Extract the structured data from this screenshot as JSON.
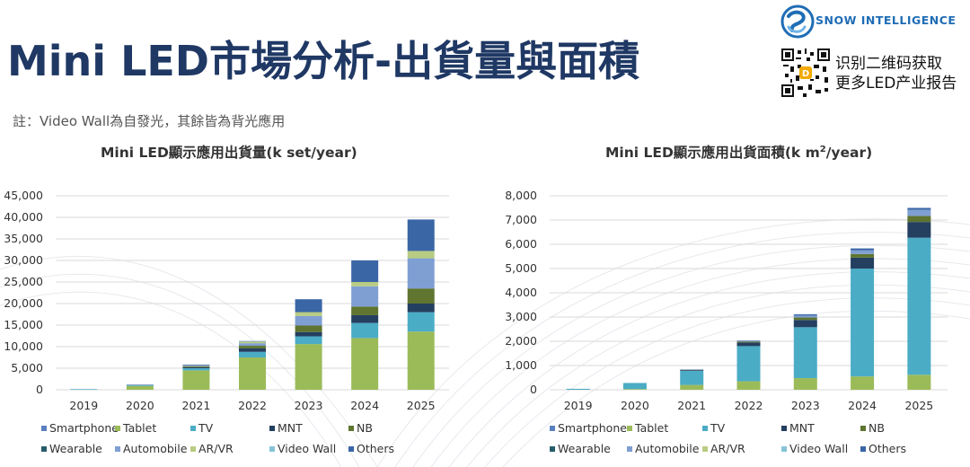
{
  "header": {
    "title": "Mini LED市場分析-出貨量與面積",
    "note": "註：Video Wall為自發光，其餘皆為背光應用"
  },
  "branding": {
    "logo_text": "SNOW INTELLIGENCE",
    "qr_line1": "识别二维码获取",
    "qr_line2": "更多LED产业报告"
  },
  "colors": {
    "Smartphone": "#5b7fbf",
    "Tablet": "#9bbb59",
    "TV": "#4bacc6",
    "MNT": "#243f60",
    "NB": "#5f7530",
    "Wearable": "#275c6b",
    "Automobile": "#7f9fd3",
    "AR/VR": "#b8cc82",
    "Video Wall": "#87c4d8",
    "Others": "#3a66a6",
    "title": "#1f3864",
    "logo": "#1f6db5"
  },
  "chart_data": [
    {
      "type": "bar",
      "stacked": true,
      "title": "Mini LED顯示應用出貨量",
      "title_unit": "(k set/year)",
      "categories": [
        "2019",
        "2020",
        "2021",
        "2022",
        "2023",
        "2024",
        "2025"
      ],
      "ylim": [
        0,
        45000
      ],
      "yticks": [
        0,
        5000,
        10000,
        15000,
        20000,
        25000,
        30000,
        35000,
        40000,
        45000
      ],
      "ytick_labels": [
        "0",
        "5,000",
        "10,000",
        "15,000",
        "20,000",
        "25,000",
        "30,000",
        "35,000",
        "40,000",
        "45,000"
      ],
      "series": [
        {
          "name": "Smartphone",
          "values": [
            0,
            0,
            0,
            0,
            0,
            0,
            0
          ]
        },
        {
          "name": "Tablet",
          "values": [
            0,
            900,
            4500,
            7500,
            10600,
            12000,
            13500
          ]
        },
        {
          "name": "TV",
          "values": [
            150,
            200,
            500,
            1300,
            1800,
            3500,
            4500
          ]
        },
        {
          "name": "MNT",
          "values": [
            0,
            0,
            200,
            800,
            1000,
            1800,
            2000
          ]
        },
        {
          "name": "NB",
          "values": [
            0,
            0,
            200,
            600,
            1500,
            2000,
            3500
          ]
        },
        {
          "name": "Wearable",
          "values": [
            0,
            0,
            0,
            0,
            0,
            0,
            0
          ]
        },
        {
          "name": "Automobile",
          "values": [
            0,
            0,
            100,
            600,
            2200,
            4700,
            7000
          ]
        },
        {
          "name": "AR/VR",
          "values": [
            0,
            0,
            100,
            400,
            900,
            1000,
            1700
          ]
        },
        {
          "name": "Video Wall",
          "values": [
            0,
            0,
            0,
            0,
            0,
            0,
            0
          ]
        },
        {
          "name": "Others",
          "values": [
            0,
            100,
            200,
            100,
            3000,
            5000,
            7300
          ]
        }
      ]
    },
    {
      "type": "bar",
      "stacked": true,
      "title": "Mini LED顯示應用出貨面積",
      "title_unit": "(k m",
      "title_sup": "2",
      "title_end": "/year)",
      "categories": [
        "2019",
        "2020",
        "2021",
        "2022",
        "2023",
        "2024",
        "2025"
      ],
      "ylim": [
        0,
        8000
      ],
      "yticks": [
        0,
        1000,
        2000,
        3000,
        4000,
        5000,
        6000,
        7000,
        8000
      ],
      "ytick_labels": [
        "0",
        "1,000",
        "2,000",
        "3,000",
        "4,000",
        "5,000",
        "6,000",
        "7,000",
        "8,000"
      ],
      "series": [
        {
          "name": "Smartphone",
          "values": [
            0,
            0,
            0,
            0,
            0,
            0,
            0
          ]
        },
        {
          "name": "Tablet",
          "values": [
            0,
            30,
            200,
            350,
            480,
            550,
            620
          ]
        },
        {
          "name": "TV",
          "values": [
            40,
            250,
            580,
            1450,
            2100,
            4450,
            5650
          ]
        },
        {
          "name": "MNT",
          "values": [
            0,
            0,
            30,
            150,
            300,
            450,
            650
          ]
        },
        {
          "name": "NB",
          "values": [
            0,
            0,
            10,
            40,
            100,
            150,
            250
          ]
        },
        {
          "name": "Wearable",
          "values": [
            0,
            0,
            0,
            0,
            0,
            0,
            0
          ]
        },
        {
          "name": "Automobile",
          "values": [
            0,
            0,
            10,
            20,
            80,
            150,
            250
          ]
        },
        {
          "name": "AR/VR",
          "values": [
            0,
            0,
            0,
            0,
            0,
            0,
            0
          ]
        },
        {
          "name": "Video Wall",
          "values": [
            0,
            0,
            0,
            0,
            0,
            0,
            0
          ]
        },
        {
          "name": "Others",
          "values": [
            0,
            0,
            10,
            20,
            50,
            80,
            80
          ]
        }
      ]
    }
  ],
  "legend": {
    "items": [
      "Smartphone",
      "Tablet",
      "TV",
      "MNT",
      "NB",
      "Wearable",
      "Automobile",
      "AR/VR",
      "Video Wall",
      "Others"
    ]
  }
}
